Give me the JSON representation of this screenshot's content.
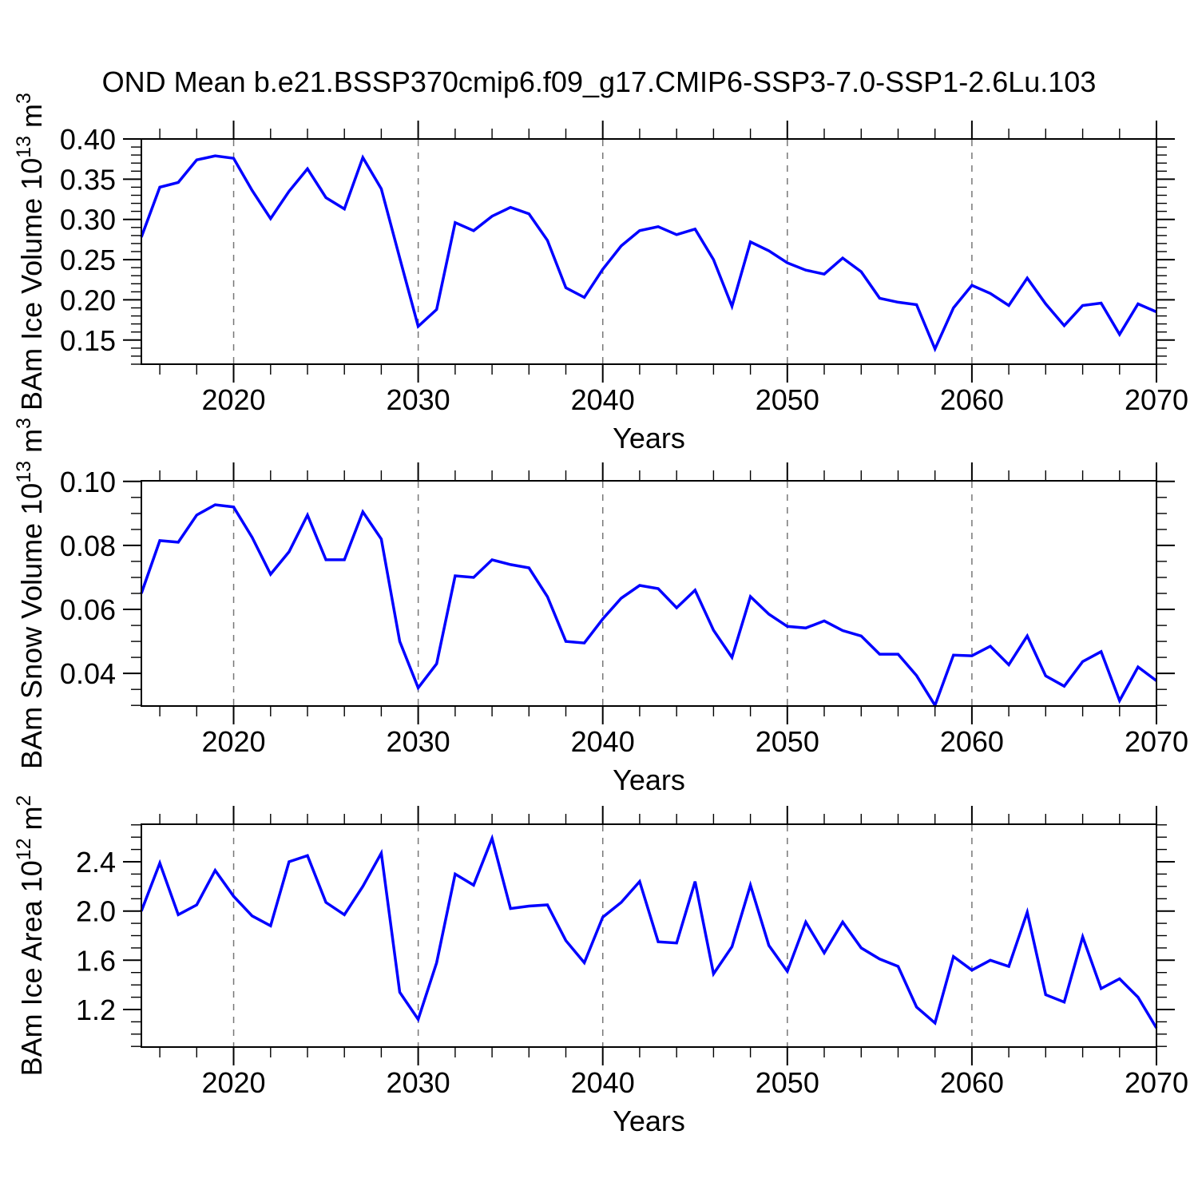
{
  "title": "OND Mean b.e21.BSSP370cmip6.f09_g17.CMIP6-SSP3-7.0-SSP1-2.6Lu.103",
  "chart_data": {
    "type": "line",
    "suptitle": "OND Mean b.e21.BSSP370cmip6.f09_g17.CMIP6-SSP3-7.0-SSP1-2.6Lu.103",
    "xlabel": "Years",
    "x": [
      2015,
      2016,
      2017,
      2018,
      2019,
      2020,
      2021,
      2022,
      2023,
      2024,
      2025,
      2026,
      2027,
      2028,
      2029,
      2030,
      2031,
      2032,
      2033,
      2034,
      2035,
      2036,
      2037,
      2038,
      2039,
      2040,
      2041,
      2042,
      2043,
      2044,
      2045,
      2046,
      2047,
      2048,
      2049,
      2050,
      2051,
      2052,
      2053,
      2054,
      2055,
      2056,
      2057,
      2058,
      2059,
      2060,
      2061,
      2062,
      2063,
      2064,
      2065,
      2066,
      2067,
      2068,
      2069,
      2070
    ],
    "xlim": [
      2015,
      2070
    ],
    "xticks": [
      2020,
      2030,
      2040,
      2050,
      2060,
      2070
    ],
    "xtick_labels": [
      "2020",
      "2030",
      "2040",
      "2050",
      "2060",
      "2070"
    ],
    "x_minor_step": 2,
    "grid_x": [
      2020,
      2030,
      2040,
      2050,
      2060
    ],
    "grid_style": "dashed",
    "grid_color": "#777777",
    "line_color": "#0000ff",
    "frame_color": "#000000",
    "legend": "none",
    "panels": [
      {
        "name": "BAm Ice Volume",
        "ylabel": "BAm Ice Volume 10^13 m^3",
        "ylabel_rich": [
          {
            "t": "BAm Ice Volume 10"
          },
          {
            "t": "13",
            "sup": true
          },
          {
            "t": " m"
          },
          {
            "t": "3",
            "sup": true
          }
        ],
        "ylim": [
          0.12,
          0.4
        ],
        "yticks": [
          0.15,
          0.2,
          0.25,
          0.3,
          0.35,
          0.4
        ],
        "ytick_labels": [
          "0.15",
          "0.20",
          "0.25",
          "0.30",
          "0.35",
          "0.40"
        ],
        "y_minor_step": 0.01,
        "values": [
          0.278,
          0.34,
          0.346,
          0.374,
          0.379,
          0.376,
          0.336,
          0.301,
          0.335,
          0.363,
          0.327,
          0.313,
          0.377,
          0.338,
          0.252,
          0.167,
          0.188,
          0.296,
          0.286,
          0.304,
          0.315,
          0.307,
          0.274,
          0.215,
          0.203,
          0.238,
          0.267,
          0.286,
          0.291,
          0.281,
          0.288,
          0.25,
          0.192,
          0.272,
          0.261,
          0.246,
          0.237,
          0.232,
          0.252,
          0.235,
          0.202,
          0.197,
          0.194,
          0.139,
          0.19,
          0.218,
          0.208,
          0.193,
          0.227,
          0.195,
          0.168,
          0.193,
          0.196,
          0.157,
          0.195,
          0.185
        ]
      },
      {
        "name": "BAm Snow Volume",
        "ylabel": "BAm Snow Volume 10^13 m^3",
        "ylabel_rich": [
          {
            "t": "BAm Snow Volume 10"
          },
          {
            "t": "13",
            "sup": true
          },
          {
            "t": " m"
          },
          {
            "t": "3",
            "sup": true
          }
        ],
        "ylim": [
          0.0298,
          0.1002
        ],
        "yticks": [
          0.04,
          0.06,
          0.08,
          0.1
        ],
        "ytick_labels": [
          "0.04",
          "0.06",
          "0.08",
          "0.10"
        ],
        "y_minor_step": 0.005,
        "values": [
          0.065,
          0.0815,
          0.081,
          0.0895,
          0.0927,
          0.092,
          0.0825,
          0.071,
          0.078,
          0.0895,
          0.0755,
          0.0755,
          0.0905,
          0.082,
          0.05,
          0.0355,
          0.043,
          0.0705,
          0.07,
          0.0755,
          0.074,
          0.073,
          0.064,
          0.05,
          0.0495,
          0.057,
          0.0635,
          0.0675,
          0.0665,
          0.0605,
          0.066,
          0.0535,
          0.045,
          0.064,
          0.0585,
          0.0547,
          0.0542,
          0.0564,
          0.0534,
          0.0517,
          0.046,
          0.046,
          0.0393,
          0.03,
          0.0457,
          0.0455,
          0.0485,
          0.0427,
          0.0517,
          0.0392,
          0.036,
          0.0437,
          0.0468,
          0.0315,
          0.042,
          0.0377
        ]
      },
      {
        "name": "BAm Ice Area",
        "ylabel": "BAm Ice Area 10^12 m^2",
        "ylabel_rich": [
          {
            "t": "BAm Ice Area 10"
          },
          {
            "t": "12",
            "sup": true
          },
          {
            "t": " m"
          },
          {
            "t": "2",
            "sup": true
          }
        ],
        "ylim": [
          0.895,
          2.705
        ],
        "yticks": [
          1.2,
          1.6,
          2.0,
          2.4
        ],
        "ytick_labels": [
          "1.2",
          "1.6",
          "2.0",
          "2.4"
        ],
        "y_minor_step": 0.1,
        "values": [
          2.0,
          2.39,
          1.97,
          2.05,
          2.33,
          2.12,
          1.96,
          1.88,
          2.4,
          2.45,
          2.07,
          1.97,
          2.2,
          2.47,
          1.34,
          1.12,
          1.58,
          2.3,
          2.21,
          2.59,
          2.02,
          2.04,
          2.05,
          1.76,
          1.58,
          1.95,
          2.07,
          2.24,
          1.75,
          1.74,
          2.24,
          1.49,
          1.71,
          2.21,
          1.72,
          1.51,
          1.91,
          1.66,
          1.91,
          1.7,
          1.61,
          1.55,
          1.22,
          1.09,
          1.63,
          1.52,
          1.6,
          1.55,
          1.99,
          1.32,
          1.26,
          1.79,
          1.37,
          1.45,
          1.3,
          1.05
        ]
      }
    ]
  }
}
